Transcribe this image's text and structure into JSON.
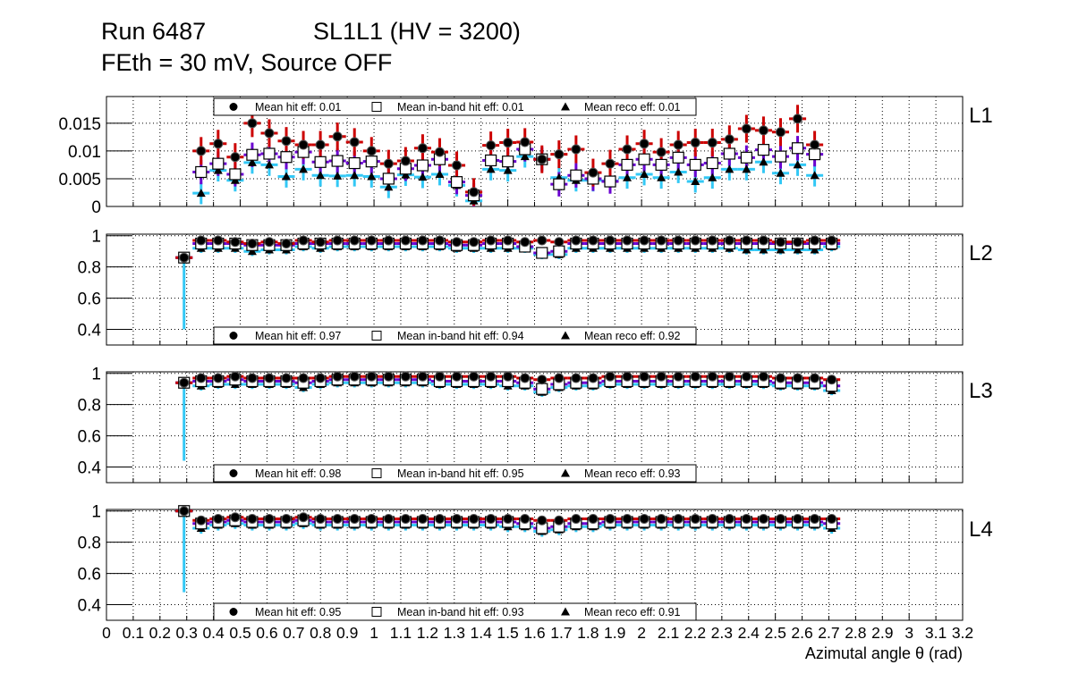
{
  "chart_data": {
    "type": "scatter",
    "title_line1_left": "Run 6487",
    "title_line1_right": "SL1L1 (HV = 3200)",
    "title_line2": "FEth = 30 mV, Source OFF",
    "xlabel": "Azimutal angle θ (rad)",
    "xlim": [
      0,
      3.2
    ],
    "xticks": [
      "0",
      "0.1",
      "0.2",
      "0.3",
      "0.4",
      "0.5",
      "0.6",
      "0.7",
      "0.8",
      "0.9",
      "1",
      "1.1",
      "1.2",
      "1.3",
      "1.4",
      "1.5",
      "1.6",
      "1.7",
      "1.8",
      "1.9",
      "2",
      "2.1",
      "2.2",
      "2.3",
      "2.4",
      "2.5",
      "2.6",
      "2.7",
      "2.8",
      "2.9",
      "3",
      "3.1",
      "3.2"
    ],
    "bin_start": 0.29,
    "bin_width": 0.0637,
    "colors": {
      "hit": "#cc0000",
      "inband": "#6a00d0",
      "reco": "#33c8f5",
      "marker": "#000000"
    },
    "panels": [
      {
        "label": "L1",
        "ylim": [
          0,
          0.0198
        ],
        "yticks": [
          "0",
          "0.005",
          "0.01",
          "0.015"
        ],
        "ytick_values": [
          0,
          0.005,
          0.01,
          0.015
        ],
        "legend": {
          "hit": "Mean hit  eff: 0.01",
          "inband": "Mean in-band hit eff: 0.01",
          "reco": "Mean reco eff: 0.01"
        },
        "legend_pos": "top",
        "err": {
          "hit": 0.0025,
          "inband": 0.0022,
          "reco": 0.002
        },
        "hit": [
          null,
          0.01,
          0.0113,
          0.0089,
          0.015,
          0.0132,
          0.0118,
          0.0111,
          0.0111,
          0.0126,
          0.0116,
          0.01,
          0.0077,
          0.0082,
          0.0105,
          0.0098,
          0.0074,
          0.0026,
          0.011,
          0.0115,
          0.0116,
          0.0085,
          0.0094,
          0.0103,
          0.0061,
          0.0077,
          0.0103,
          0.0113,
          0.0098,
          0.0111,
          0.0115,
          0.0115,
          0.0121,
          0.014,
          0.0137,
          0.0134,
          0.0158,
          0.0111,
          null
        ],
        "inband": [
          null,
          0.0062,
          0.0077,
          0.0058,
          0.0093,
          0.0095,
          0.0089,
          0.0098,
          0.008,
          0.0082,
          0.0078,
          0.0081,
          0.005,
          0.0068,
          0.0074,
          0.0085,
          0.0044,
          0.002,
          0.0083,
          0.0081,
          0.0103,
          0.0085,
          0.004,
          0.0056,
          0.005,
          0.0045,
          0.0075,
          0.0085,
          0.0075,
          0.0088,
          0.0075,
          0.0078,
          0.0095,
          0.0088,
          0.0102,
          0.009,
          0.0105,
          0.0094,
          null
        ],
        "reco": [
          null,
          0.0024,
          0.0065,
          0.0047,
          0.0079,
          0.0075,
          0.0054,
          0.0067,
          0.0056,
          0.0055,
          0.0056,
          0.0054,
          0.0035,
          0.0057,
          0.0053,
          0.0058,
          0.0038,
          0.001,
          0.0067,
          0.0065,
          0.009,
          0.0085,
          0.0052,
          0.0047,
          0.0047,
          0.0046,
          0.0052,
          0.0058,
          0.0052,
          0.0062,
          0.0045,
          0.0052,
          0.0067,
          0.0067,
          0.008,
          0.006,
          0.0075,
          0.0056,
          null
        ]
      },
      {
        "label": "L2",
        "ylim": [
          0.3,
          1.01
        ],
        "yticks": [
          "0.4",
          "0.6",
          "0.8",
          "1"
        ],
        "ytick_values": [
          0.4,
          0.6,
          0.8,
          1
        ],
        "legend": {
          "hit": "Mean hit  eff: 0.97",
          "inband": "Mean in-band hit eff: 0.94",
          "reco": "Mean reco eff: 0.92"
        },
        "legend_pos": "bottom",
        "err": {
          "hit": 0.02,
          "inband": 0.025,
          "reco": 0.03
        },
        "first_err": 0.46,
        "hit": [
          0.86,
          0.97,
          0.97,
          0.96,
          0.95,
          0.96,
          0.95,
          0.97,
          0.96,
          0.97,
          0.97,
          0.97,
          0.97,
          0.97,
          0.97,
          0.97,
          0.96,
          0.96,
          0.97,
          0.97,
          0.96,
          0.97,
          0.96,
          0.97,
          0.97,
          0.97,
          0.97,
          0.97,
          0.97,
          0.97,
          0.97,
          0.97,
          0.97,
          0.97,
          0.97,
          0.96,
          0.96,
          0.97,
          0.97
        ],
        "inband": [
          0.86,
          0.95,
          0.95,
          0.95,
          0.94,
          0.94,
          0.94,
          0.95,
          0.95,
          0.95,
          0.95,
          0.95,
          0.95,
          0.95,
          0.95,
          0.95,
          0.94,
          0.94,
          0.95,
          0.95,
          0.93,
          0.89,
          0.9,
          0.95,
          0.95,
          0.95,
          0.95,
          0.95,
          0.95,
          0.95,
          0.95,
          0.95,
          0.95,
          0.95,
          0.95,
          0.95,
          0.95,
          0.95,
          0.95
        ],
        "reco": [
          0.86,
          0.92,
          0.92,
          0.92,
          0.9,
          0.91,
          0.91,
          0.93,
          0.92,
          0.93,
          0.93,
          0.93,
          0.93,
          0.93,
          0.93,
          0.93,
          0.92,
          0.92,
          0.92,
          0.92,
          0.92,
          0.88,
          0.88,
          0.92,
          0.92,
          0.92,
          0.92,
          0.92,
          0.92,
          0.92,
          0.92,
          0.92,
          0.92,
          0.91,
          0.91,
          0.91,
          0.91,
          0.91,
          0.93
        ]
      },
      {
        "label": "L3",
        "ylim": [
          0.3,
          1.01
        ],
        "yticks": [
          "0.4",
          "0.6",
          "0.8",
          "1"
        ],
        "ytick_values": [
          0.4,
          0.6,
          0.8,
          1
        ],
        "legend": {
          "hit": "Mean hit  eff: 0.98",
          "inband": "Mean in-band hit eff: 0.95",
          "reco": "Mean reco eff: 0.93"
        },
        "legend_pos": "bottom",
        "err": {
          "hit": 0.02,
          "inband": 0.025,
          "reco": 0.03
        },
        "first_err": 0.5,
        "hit": [
          0.94,
          0.97,
          0.97,
          0.98,
          0.97,
          0.97,
          0.97,
          0.97,
          0.97,
          0.98,
          0.98,
          0.98,
          0.98,
          0.98,
          0.98,
          0.98,
          0.98,
          0.98,
          0.98,
          0.98,
          0.97,
          0.96,
          0.97,
          0.97,
          0.97,
          0.98,
          0.98,
          0.98,
          0.98,
          0.98,
          0.98,
          0.98,
          0.98,
          0.98,
          0.98,
          0.97,
          0.97,
          0.97,
          0.96
        ],
        "inband": [
          0.94,
          0.95,
          0.95,
          0.96,
          0.95,
          0.95,
          0.95,
          0.94,
          0.95,
          0.96,
          0.96,
          0.96,
          0.96,
          0.96,
          0.96,
          0.95,
          0.95,
          0.95,
          0.95,
          0.95,
          0.94,
          0.9,
          0.93,
          0.94,
          0.94,
          0.95,
          0.95,
          0.95,
          0.95,
          0.95,
          0.95,
          0.95,
          0.95,
          0.95,
          0.95,
          0.94,
          0.94,
          0.94,
          0.92
        ],
        "reco": [
          0.94,
          0.92,
          0.93,
          0.93,
          0.93,
          0.93,
          0.93,
          0.91,
          0.93,
          0.94,
          0.94,
          0.94,
          0.94,
          0.94,
          0.94,
          0.93,
          0.93,
          0.93,
          0.93,
          0.92,
          0.92,
          0.88,
          0.91,
          0.92,
          0.92,
          0.93,
          0.93,
          0.93,
          0.93,
          0.93,
          0.93,
          0.93,
          0.93,
          0.93,
          0.93,
          0.92,
          0.92,
          0.92,
          0.89
        ]
      },
      {
        "label": "L4",
        "ylim": [
          0.3,
          1.01
        ],
        "yticks": [
          "0.4",
          "0.6",
          "0.8",
          "1"
        ],
        "ytick_values": [
          0.4,
          0.6,
          0.8,
          1
        ],
        "legend": {
          "hit": "Mean hit  eff: 0.95",
          "inband": "Mean in-band hit eff: 0.93",
          "reco": "Mean reco eff: 0.91"
        },
        "legend_pos": "bottom",
        "err": {
          "hit": 0.025,
          "inband": 0.03,
          "reco": 0.035
        },
        "first_err": 0.52,
        "hit": [
          1.0,
          0.94,
          0.95,
          0.96,
          0.95,
          0.95,
          0.95,
          0.96,
          0.95,
          0.95,
          0.95,
          0.95,
          0.95,
          0.95,
          0.95,
          0.95,
          0.95,
          0.95,
          0.95,
          0.95,
          0.95,
          0.94,
          0.94,
          0.95,
          0.95,
          0.95,
          0.95,
          0.95,
          0.95,
          0.95,
          0.95,
          0.95,
          0.95,
          0.95,
          0.95,
          0.95,
          0.95,
          0.95,
          0.95
        ],
        "inband": [
          1.0,
          0.92,
          0.93,
          0.94,
          0.93,
          0.93,
          0.93,
          0.94,
          0.93,
          0.93,
          0.93,
          0.93,
          0.93,
          0.93,
          0.93,
          0.93,
          0.93,
          0.93,
          0.93,
          0.93,
          0.92,
          0.89,
          0.9,
          0.92,
          0.92,
          0.93,
          0.93,
          0.93,
          0.93,
          0.93,
          0.93,
          0.93,
          0.93,
          0.93,
          0.93,
          0.93,
          0.93,
          0.93,
          0.92
        ],
        "reco": [
          1.0,
          0.89,
          0.91,
          0.92,
          0.91,
          0.91,
          0.91,
          0.92,
          0.91,
          0.91,
          0.91,
          0.91,
          0.91,
          0.91,
          0.91,
          0.91,
          0.91,
          0.91,
          0.91,
          0.9,
          0.9,
          0.87,
          0.88,
          0.9,
          0.9,
          0.91,
          0.91,
          0.91,
          0.91,
          0.91,
          0.91,
          0.91,
          0.91,
          0.91,
          0.91,
          0.91,
          0.91,
          0.91,
          0.89
        ]
      }
    ]
  }
}
